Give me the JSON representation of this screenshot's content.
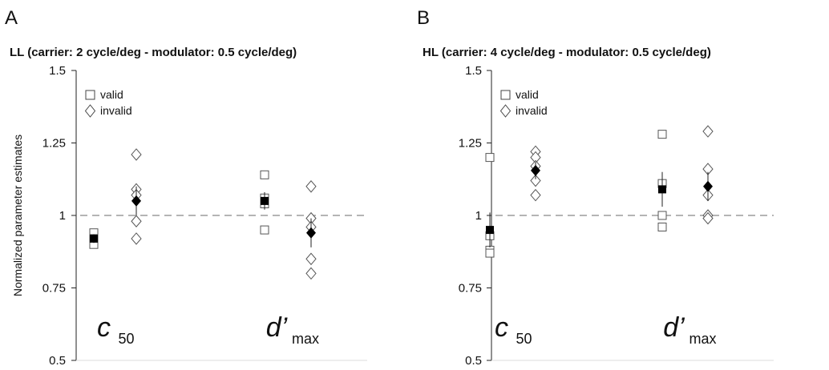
{
  "figure": {
    "ylabel": "Normalized parameter estimates"
  },
  "chart_data": [
    {
      "type": "scatter",
      "panel_letter": "A",
      "title": "LL (carrier: 2 cycle/deg - modulator: 0.5 cycle/deg)",
      "ylabel": "Normalized parameter estimates",
      "ylim": [
        0.5,
        1.5
      ],
      "yticks": [
        0.5,
        0.75,
        1,
        1.25,
        1.5
      ],
      "ytick_labels": [
        "0.5",
        "0.75",
        "1",
        "1.25",
        "1.5"
      ],
      "reference_line": 1,
      "grid": false,
      "legend": {
        "placement": "top-left",
        "entries": [
          {
            "marker": "square-open",
            "label": "valid"
          },
          {
            "marker": "diamond-open",
            "label": "invalid"
          }
        ]
      },
      "groups": [
        {
          "name": "c",
          "subscript": "50"
        },
        {
          "name": "d’",
          "subscript": "max"
        }
      ],
      "series": [
        {
          "name": "valid",
          "marker": "square",
          "group": 0,
          "points": [
            0.94,
            0.92,
            0.91,
            0.9
          ],
          "mean": 0.92,
          "err": 0.015
        },
        {
          "name": "invalid",
          "marker": "diamond",
          "group": 0,
          "points": [
            1.21,
            1.09,
            1.07,
            0.98,
            0.92
          ],
          "mean": 1.05,
          "err": 0.05
        },
        {
          "name": "valid",
          "marker": "square",
          "group": 1,
          "points": [
            1.14,
            1.06,
            1.04,
            0.95
          ],
          "mean": 1.05,
          "err": 0.03
        },
        {
          "name": "invalid",
          "marker": "diamond",
          "group": 1,
          "points": [
            1.1,
            0.99,
            0.96,
            0.85,
            0.8
          ],
          "mean": 0.94,
          "err": 0.05
        }
      ]
    },
    {
      "type": "scatter",
      "panel_letter": "B",
      "title": "HL (carrier: 4 cycle/deg - modulator: 0.5 cycle/deg)",
      "ylim": [
        0.5,
        1.5
      ],
      "yticks": [
        0.5,
        0.75,
        1,
        1.25,
        1.5
      ],
      "ytick_labels": [
        "0.5",
        "0.75",
        "1",
        "1.25",
        "1.5"
      ],
      "reference_line": 1,
      "grid": false,
      "legend": {
        "placement": "top-left",
        "entries": [
          {
            "marker": "square-open",
            "label": "valid"
          },
          {
            "marker": "diamond-open",
            "label": "invalid"
          }
        ]
      },
      "groups": [
        {
          "name": "c",
          "subscript": "50"
        },
        {
          "name": "d’",
          "subscript": "max"
        }
      ],
      "series": [
        {
          "name": "valid",
          "marker": "square",
          "group": 0,
          "points": [
            1.2,
            0.93,
            0.88,
            0.87
          ],
          "mean": 0.95,
          "err": 0.06
        },
        {
          "name": "invalid",
          "marker": "diamond",
          "group": 0,
          "points": [
            1.22,
            1.2,
            1.17,
            1.12,
            1.07
          ],
          "mean": 1.155,
          "err": 0.03
        },
        {
          "name": "valid",
          "marker": "square",
          "group": 1,
          "points": [
            1.28,
            1.11,
            1.0,
            0.96
          ],
          "mean": 1.09,
          "err": 0.06
        },
        {
          "name": "invalid",
          "marker": "diamond",
          "group": 1,
          "points": [
            1.29,
            1.16,
            1.07,
            1.0,
            0.99
          ],
          "mean": 1.1,
          "err": 0.05
        }
      ]
    }
  ]
}
